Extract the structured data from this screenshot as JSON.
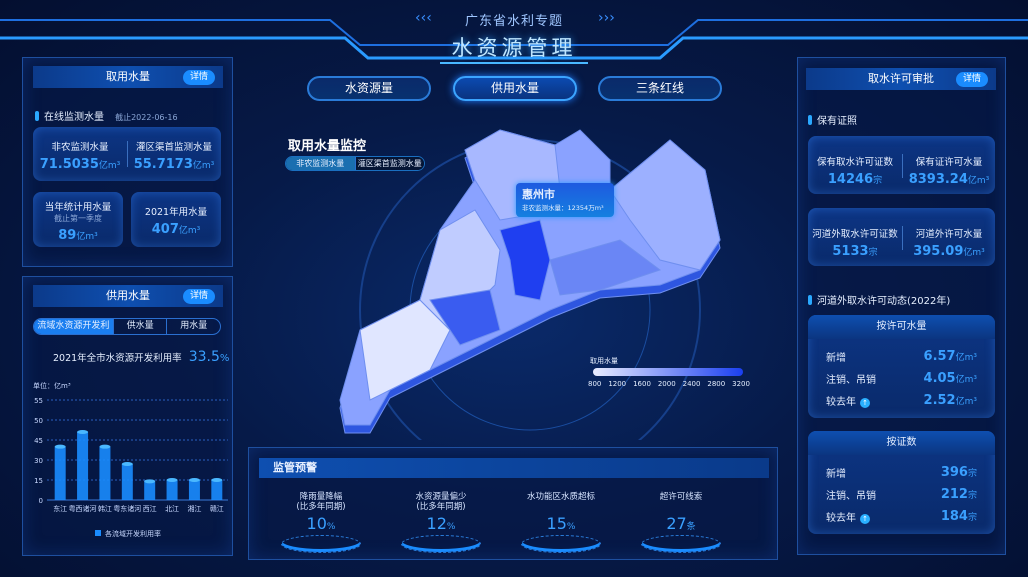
{
  "header": {
    "subtitle": "广东省水利专题",
    "title": "水资源管理"
  },
  "nav": [
    {
      "label": "水资源量",
      "active": false
    },
    {
      "label": "供用水量",
      "active": true
    },
    {
      "label": "三条红线",
      "active": false
    }
  ],
  "left_top": {
    "title": "取用水量",
    "detail": "详情",
    "section": "在线监测水量",
    "as_of": "截止2022-06-16",
    "card1": [
      {
        "label": "非农监测水量",
        "value": "71.5035",
        "unit": "亿m³"
      },
      {
        "label": "灌区渠首监测水量",
        "value": "55.7173",
        "unit": "亿m³"
      }
    ],
    "card2": {
      "label": "当年统计用水量",
      "note": "截止第一季度",
      "value": "89",
      "unit": "亿m³"
    },
    "card3": {
      "label": "2021年用水量",
      "value": "407",
      "unit": "亿m³"
    }
  },
  "left_bottom": {
    "title": "供用水量",
    "detail": "详情",
    "tabs": [
      "流域水资源开发利用",
      "供水量",
      "用水量"
    ],
    "rate_label": "2021年全市水资源开发利用率",
    "rate_value": "33.5",
    "rate_unit": "%"
  },
  "chart_data": {
    "type": "bar",
    "ylabel": "单位：亿m³",
    "yticks": [
      0,
      15,
      30,
      45,
      50,
      55
    ],
    "categories": [
      "东江",
      "粤西诸河",
      "韩江",
      "粤东诸河",
      "西江",
      "北江",
      "湘江",
      "赣江"
    ],
    "values": [
      40,
      47,
      40,
      27,
      14,
      15,
      15,
      15
    ],
    "legend": "各流域开发利用率",
    "color": "#1a8cff",
    "grid": true
  },
  "center": {
    "map_title": "取用水量监控",
    "toggle": [
      "非农监测水量",
      "灌区渠首监测水量"
    ],
    "tooltip": {
      "city": "惠州市",
      "label": "非农监测水量：",
      "value": "12354",
      "unit": "万m³"
    },
    "legend": {
      "title": "取用水量",
      "ticks": [
        "800",
        "1200",
        "1600",
        "2000",
        "2400",
        "2800",
        "3200"
      ]
    }
  },
  "warning": {
    "title": "监管预警",
    "items": [
      {
        "label": "降雨量降幅",
        "label2": "(比多年同期)",
        "value": "10",
        "unit": "%"
      },
      {
        "label": "水资源量偏少",
        "label2": "(比多年同期)",
        "value": "12",
        "unit": "%"
      },
      {
        "label": "水功能区水质超标",
        "label2": "",
        "value": "15",
        "unit": "%"
      },
      {
        "label": "超许可线索",
        "label2": "",
        "value": "27",
        "unit": "条"
      }
    ]
  },
  "right": {
    "title": "取水许可审批",
    "detail": "详情",
    "section1": "保有证照",
    "card1": [
      {
        "label": "保有取水许可证数",
        "value": "14246",
        "unit": "宗"
      },
      {
        "label": "保有证许可水量",
        "value": "8393.24",
        "unit": "亿m³"
      }
    ],
    "card2": [
      {
        "label": "河道外取水许可证数",
        "value": "5133",
        "unit": "宗"
      },
      {
        "label": "河道外许可水量",
        "value": "395.09",
        "unit": "亿m³"
      }
    ],
    "section2": "河道外取水许可动态(2022年)",
    "box1": {
      "title": "按许可水量",
      "rows": [
        {
          "label": "新增",
          "value": "6.57",
          "unit": "亿m³"
        },
        {
          "label": "注销、吊销",
          "value": "4.05",
          "unit": "亿m³"
        },
        {
          "label": "较去年",
          "value": "2.52",
          "unit": "亿m³"
        }
      ]
    },
    "box2": {
      "title": "按证数",
      "rows": [
        {
          "label": "新增",
          "value": "396",
          "unit": "宗"
        },
        {
          "label": "注销、吊销",
          "value": "212",
          "unit": "宗"
        },
        {
          "label": "较去年",
          "value": "184",
          "unit": "宗"
        }
      ]
    }
  }
}
